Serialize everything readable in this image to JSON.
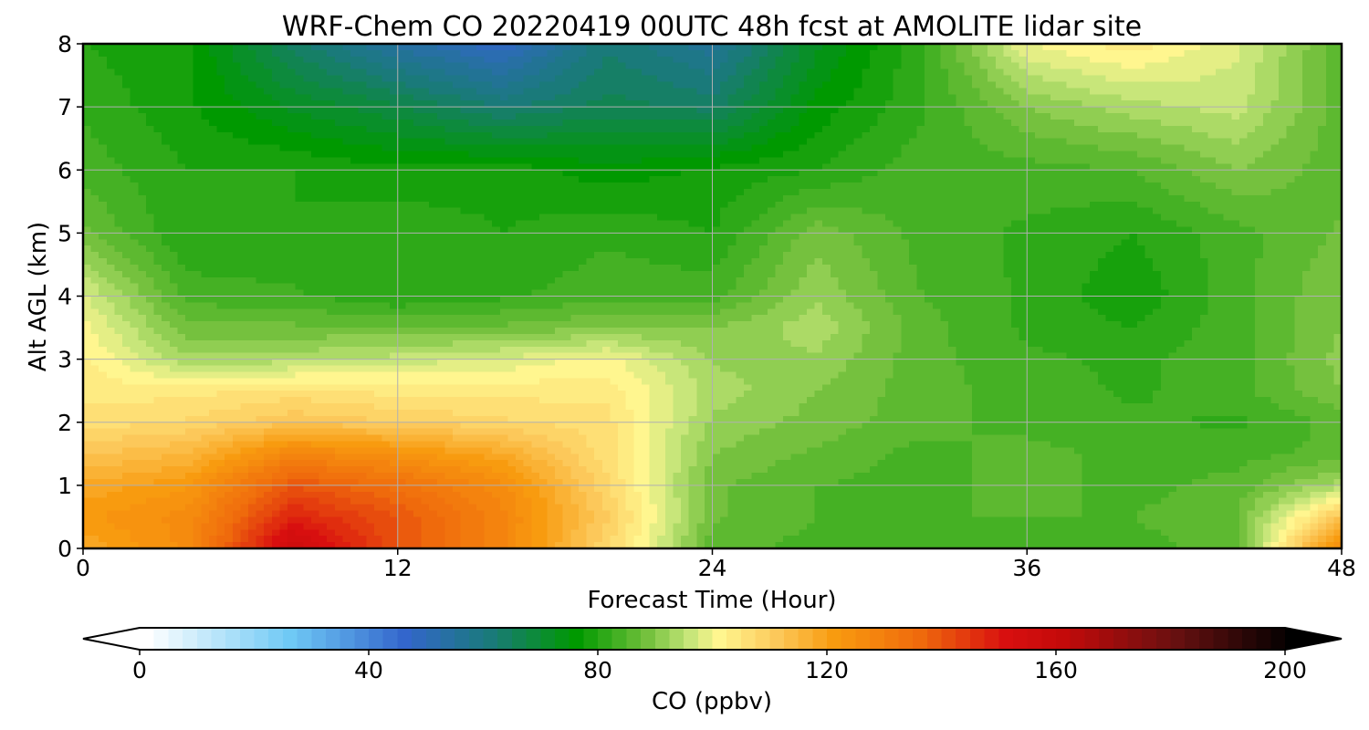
{
  "chart_data": {
    "type": "heatmap",
    "plot_style": "filled-contour",
    "title": "WRF-Chem CO  20220419 00UTC 48h fcst at AMOLITE lidar site",
    "xlabel": "Forecast Time (Hour)",
    "ylabel": "Alt AGL (km)",
    "xlim": [
      0,
      48
    ],
    "ylim": [
      0,
      8
    ],
    "xticks": [
      0,
      12,
      24,
      36,
      48
    ],
    "yticks": [
      0,
      1,
      2,
      3,
      4,
      5,
      6,
      7,
      8
    ],
    "grid": true,
    "x": [
      0,
      4,
      8,
      12,
      16,
      20,
      24,
      28,
      32,
      36,
      40,
      44,
      48
    ],
    "y": [
      0,
      0.5,
      1,
      1.5,
      2,
      2.5,
      3,
      3.5,
      4,
      5,
      6,
      7,
      8
    ],
    "z_units": "ppbv",
    "z": [
      [
        118,
        126,
        158,
        140,
        128,
        108,
        86,
        84,
        84,
        84,
        84,
        86,
        128
      ],
      [
        122,
        126,
        148,
        140,
        128,
        110,
        88,
        85,
        85,
        85,
        85,
        87,
        112
      ],
      [
        118,
        122,
        140,
        134,
        126,
        108,
        88,
        85,
        84,
        86,
        84,
        86,
        94
      ],
      [
        112,
        115,
        128,
        124,
        118,
        106,
        90,
        87,
        84,
        86,
        84,
        84,
        86
      ],
      [
        106,
        108,
        112,
        110,
        108,
        106,
        92,
        89,
        86,
        84,
        83,
        82,
        86
      ],
      [
        104,
        104,
        106,
        104,
        104,
        104,
        94,
        90,
        86,
        84,
        82,
        84,
        90
      ],
      [
        103,
        93,
        94,
        96,
        98,
        101,
        92,
        92,
        86,
        83,
        82,
        84,
        91
      ],
      [
        101,
        88,
        88,
        88,
        88,
        90,
        90,
        94,
        86,
        82,
        80,
        84,
        90
      ],
      [
        98,
        84,
        83,
        80,
        82,
        84,
        84,
        92,
        85,
        82,
        78,
        84,
        90
      ],
      [
        88,
        80,
        80,
        82,
        80,
        82,
        80,
        89,
        84,
        82,
        80,
        84,
        88
      ],
      [
        84,
        80,
        80,
        78,
        79,
        76,
        78,
        80,
        84,
        84,
        85,
        90,
        86
      ],
      [
        82,
        78,
        72,
        68,
        62,
        66,
        64,
        76,
        82,
        90,
        94,
        96,
        86
      ],
      [
        80,
        78,
        64,
        54,
        48,
        62,
        56,
        72,
        82,
        100,
        104,
        98,
        86
      ]
    ],
    "colorbar": {
      "label": "CO  (ppbv)",
      "min": 0,
      "max": 200,
      "ticks": [
        0,
        40,
        80,
        120,
        160,
        200
      ],
      "extend": "both",
      "colors": [
        [
          0,
          "#ffffff"
        ],
        [
          25,
          "#6fc9f5"
        ],
        [
          45,
          "#3366cc"
        ],
        [
          60,
          "#1a7a7a"
        ],
        [
          75,
          "#009900"
        ],
        [
          87,
          "#6fbf3a"
        ],
        [
          95,
          "#c8e67a"
        ],
        [
          100,
          "#fff68f"
        ],
        [
          110,
          "#fcc85a"
        ],
        [
          120,
          "#f89b0f"
        ],
        [
          135,
          "#ef6a0c"
        ],
        [
          150,
          "#d80f0f"
        ],
        [
          160,
          "#c40a0a"
        ],
        [
          180,
          "#661010"
        ],
        [
          200,
          "#000000"
        ]
      ]
    }
  }
}
